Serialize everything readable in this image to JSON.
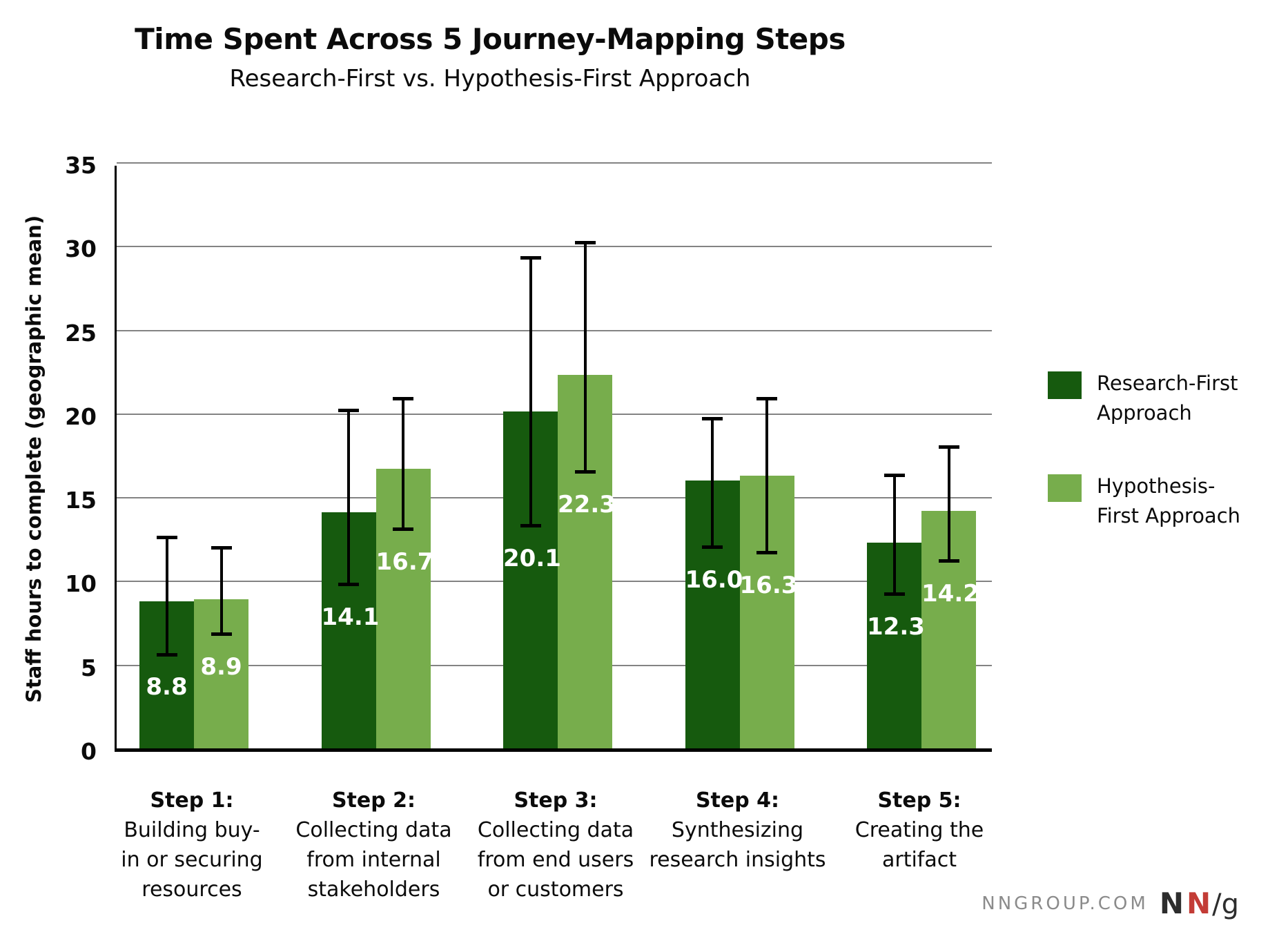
{
  "chart_data": {
    "type": "bar",
    "title": "Time Spent Across 5 Journey-Mapping Steps",
    "subtitle": "Research-First vs. Hypothesis-First Approach",
    "ylabel": "Staff hours to complete (geographic mean)",
    "ylim": [
      0,
      35
    ],
    "ytick_step": 5,
    "grid": true,
    "legend_position": "right",
    "categories": [
      [
        "Step 1:",
        "Building buy-",
        "in or securing",
        "resources"
      ],
      [
        "Step 2:",
        "Collecting data",
        "from internal",
        "stakeholders"
      ],
      [
        "Step 3:",
        "Collecting data",
        "from end users",
        "or customers"
      ],
      [
        "Step 4:",
        "Synthesizing",
        "research insights"
      ],
      [
        "Step 5:",
        "Creating the",
        "artifact"
      ]
    ],
    "series": [
      {
        "name": "Research-First Approach",
        "color": "#165A0E",
        "values": [
          8.8,
          14.1,
          20.1,
          16.0,
          12.3
        ],
        "error_low": [
          5.5,
          9.7,
          13.2,
          11.9,
          9.1
        ],
        "error_high": [
          12.7,
          20.3,
          29.4,
          19.8,
          16.4
        ]
      },
      {
        "name": "Hypothesis-First Approach",
        "color": "#77AD4C",
        "values": [
          8.9,
          16.7,
          22.3,
          16.3,
          14.2
        ],
        "error_low": [
          6.7,
          13.0,
          16.4,
          11.6,
          11.1
        ],
        "error_high": [
          12.1,
          21.0,
          30.3,
          21.0,
          18.1
        ]
      }
    ],
    "value_label_color": "#ffffff",
    "grid_color": "#838383",
    "axis_color": "#000000"
  },
  "footer": {
    "site": "NNGROUP.COM",
    "logo": {
      "n1": "N",
      "n2": "N",
      "slash_g": "/g"
    }
  }
}
